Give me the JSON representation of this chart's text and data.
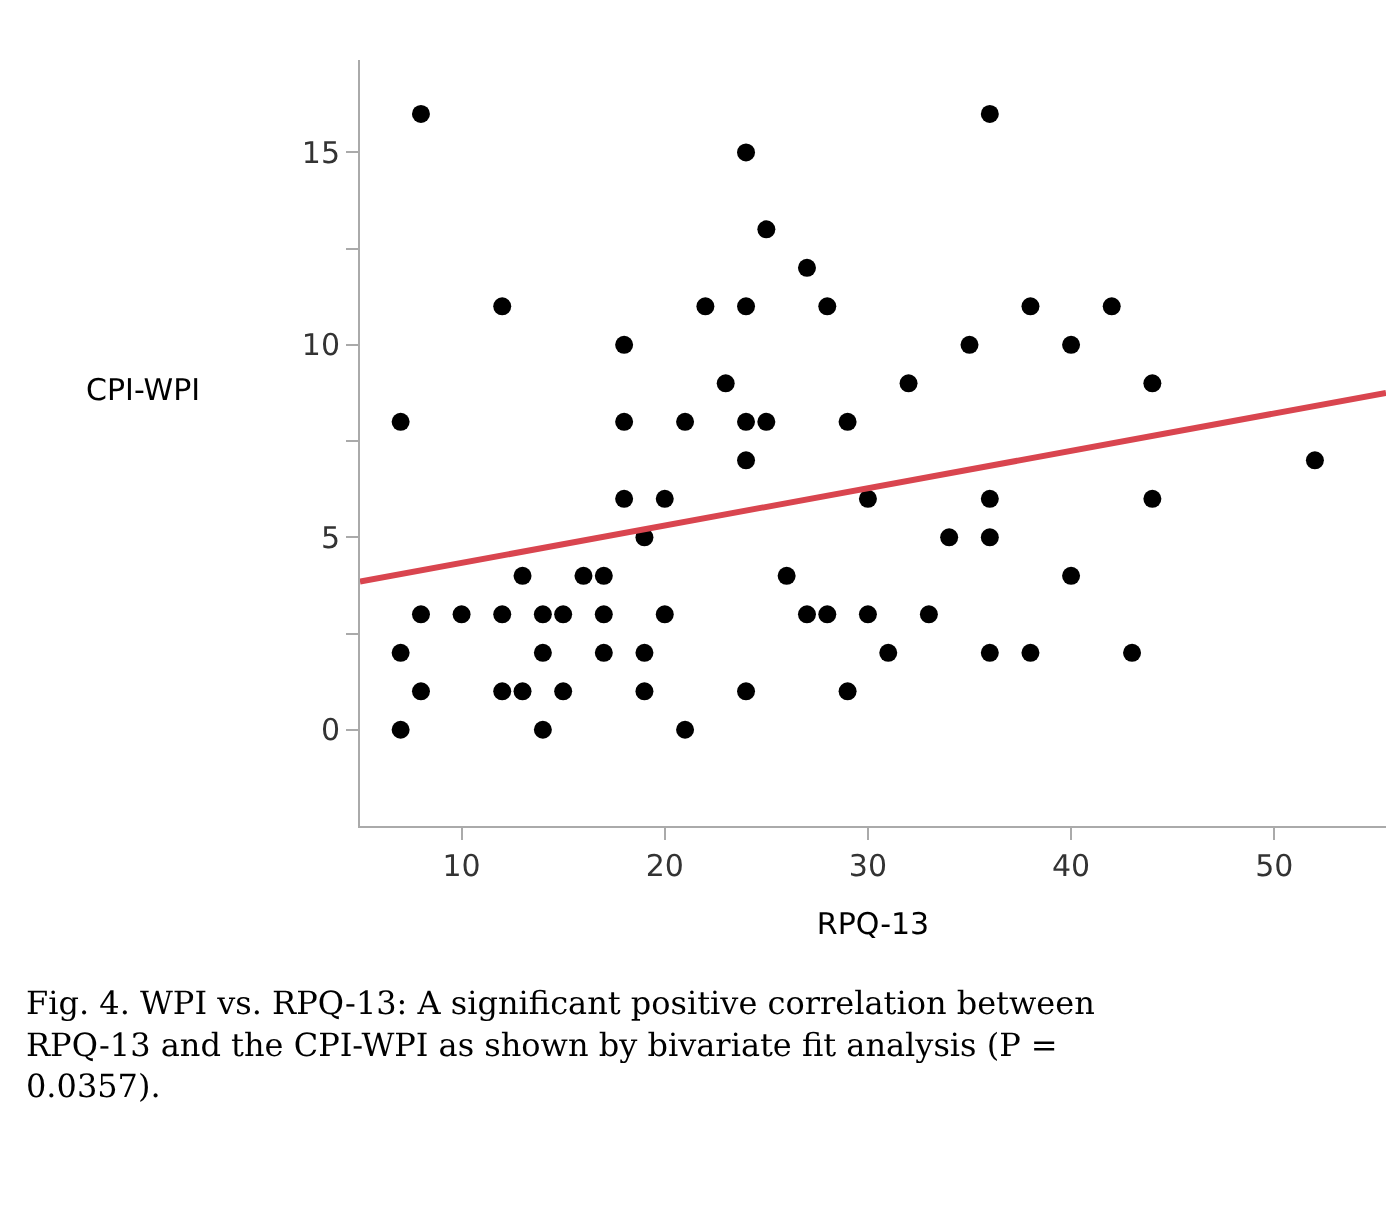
{
  "chart_data": {
    "type": "scatter",
    "xlabel": "RPQ-13",
    "ylabel": "CPI-WPI",
    "xlim": [
      5,
      55.5
    ],
    "xticks": [
      10,
      20,
      30,
      40,
      50
    ],
    "ylim": [
      -2.5,
      17.4
    ],
    "yticks": [
      0,
      {
        "value": 2.5,
        "label": null
      },
      5,
      {
        "value": 7.5,
        "label": null
      },
      10,
      {
        "value": 12.5,
        "label": null
      },
      15
    ],
    "grid": false,
    "marker": "circle",
    "series": [
      {
        "color": "#000000",
        "x": [
          7,
          8,
          7,
          7,
          8,
          8,
          10,
          12,
          12,
          12,
          13,
          13,
          14,
          14,
          14,
          15,
          15,
          16,
          17,
          17,
          17,
          18,
          18,
          18,
          19,
          19,
          19,
          20,
          20,
          21,
          21,
          22,
          23,
          24,
          24,
          24,
          24,
          24,
          25,
          25,
          26,
          27,
          27,
          28,
          28,
          29,
          29,
          30,
          30,
          31,
          32,
          33,
          34,
          35,
          36,
          36,
          36,
          36,
          38,
          38,
          40,
          40,
          42,
          43,
          44,
          44,
          52
        ],
        "values": [
          8,
          16,
          2,
          0,
          3,
          1,
          3,
          11,
          3,
          1,
          4,
          1,
          3,
          2,
          0,
          3,
          1,
          4,
          4,
          3,
          2,
          10,
          8,
          6,
          5,
          2,
          1,
          6,
          3,
          8,
          0,
          11,
          9,
          15,
          11,
          8,
          7,
          1,
          13,
          8,
          4,
          12,
          3,
          11,
          3,
          8,
          1,
          6,
          3,
          2,
          9,
          3,
          5,
          10,
          16,
          6,
          5,
          2,
          11,
          2,
          10,
          4,
          11,
          2,
          9,
          6,
          7
        ]
      },
      {
        "type": "line",
        "color": "#d9454f",
        "marker": "none",
        "line_style": "solid",
        "x": [
          5,
          55.5
        ],
        "values": [
          3.85,
          8.75
        ]
      }
    ],
    "annotations": [
      "Fig. 4. WPI vs. RPQ-13: A significant positive correlation between RPQ-13 and the CPI-WPI as shown by bivariate fit analysis (P = 0.0357)."
    ]
  }
}
